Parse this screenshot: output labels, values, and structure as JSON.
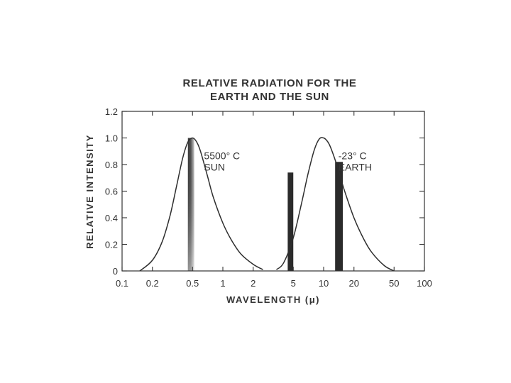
{
  "chart_data": {
    "type": "line",
    "title_lines": [
      "RELATIVE RADIATION FOR THE",
      "EARTH AND THE SUN"
    ],
    "xlabel": "WAVELENGTH (μ)",
    "ylabel": "RELATIVE INTENSITY",
    "x_scale": "log",
    "xlim": [
      0.1,
      100
    ],
    "ylim": [
      0,
      1.2
    ],
    "x_ticks": [
      {
        "value": 0.1,
        "label": "0.1"
      },
      {
        "value": 0.2,
        "label": "0.2"
      },
      {
        "value": 0.5,
        "label": "0.5"
      },
      {
        "value": 1,
        "label": "1"
      },
      {
        "value": 2,
        "label": "2"
      },
      {
        "value": 5,
        "label": "5"
      },
      {
        "value": 10,
        "label": "10"
      },
      {
        "value": 20,
        "label": "20"
      },
      {
        "value": 50,
        "label": "50"
      },
      {
        "value": 100,
        "label": "100"
      }
    ],
    "y_ticks": [
      {
        "value": 0,
        "label": "0"
      },
      {
        "value": 0.2,
        "label": "0.2"
      },
      {
        "value": 0.4,
        "label": "0.4"
      },
      {
        "value": 0.6,
        "label": "0.6"
      },
      {
        "value": 0.8,
        "label": "0.8"
      },
      {
        "value": 1.0,
        "label": "1.0"
      },
      {
        "value": 1.2,
        "label": "1.2"
      }
    ],
    "grid": false,
    "series": [
      {
        "x": [
          0.15,
          0.2,
          0.25,
          0.3,
          0.35,
          0.4,
          0.45,
          0.5,
          0.55,
          0.6,
          0.7,
          0.8,
          1.0,
          1.2,
          1.5,
          2.0,
          2.5
        ],
        "y": [
          0.0,
          0.08,
          0.22,
          0.42,
          0.65,
          0.85,
          0.97,
          1.0,
          0.97,
          0.9,
          0.72,
          0.56,
          0.36,
          0.24,
          0.13,
          0.05,
          0.01
        ]
      },
      {
        "x": [
          3.4,
          4,
          5,
          6,
          7,
          8,
          9,
          10,
          11,
          12,
          14,
          16,
          20,
          25,
          30,
          40,
          50
        ],
        "y": [
          0.01,
          0.06,
          0.25,
          0.5,
          0.73,
          0.9,
          0.99,
          1.0,
          0.97,
          0.91,
          0.76,
          0.61,
          0.4,
          0.24,
          0.14,
          0.04,
          0.0
        ]
      }
    ],
    "bands": [
      {
        "x_start": 0.45,
        "x_end": 0.52,
        "y_top": 1.0,
        "style": "gradient"
      },
      {
        "x_start": 4.4,
        "x_end": 5.0,
        "y_top": 0.74,
        "style": "solid"
      },
      {
        "x_start": 13.0,
        "x_end": 15.5,
        "y_top": 0.82,
        "style": "solid"
      }
    ],
    "annotations": [
      {
        "lines": [
          "5500° C",
          "SUN"
        ],
        "x": 0.65,
        "y": 0.83
      },
      {
        "lines": [
          "-23° C",
          "EARTH"
        ],
        "x": 14.0,
        "y": 0.83
      }
    ]
  }
}
